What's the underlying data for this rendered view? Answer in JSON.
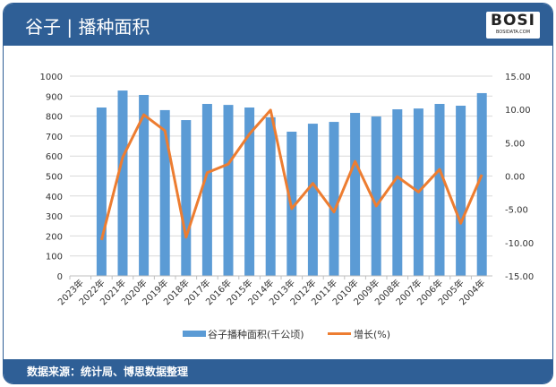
{
  "header": {
    "title": "谷子 | 播种面积",
    "logo_text": "BOSI",
    "logo_sub": "BOSIDATA.COM"
  },
  "footer": {
    "source": "数据来源：统计局、博思数据整理"
  },
  "colors": {
    "header": "#2f5f96",
    "bar": "#5b9bd5",
    "line": "#ed7d31"
  },
  "chart_data": {
    "type": "bar",
    "categories": [
      "2023年",
      "2022年",
      "2021年",
      "2020年",
      "2019年",
      "2018年",
      "2017年",
      "2016年",
      "2015年",
      "2014年",
      "2013年",
      "2012年",
      "2011年",
      "2010年",
      "2009年",
      "2008年",
      "2007年",
      "2006年",
      "2005年",
      "2004年"
    ],
    "series": [
      {
        "name": "谷子播种面积(千公顷)",
        "type": "bar",
        "axis": "left",
        "values": [
          null,
          843,
          928,
          906,
          830,
          780,
          861,
          856,
          843,
          794,
          722,
          762,
          771,
          816,
          798,
          834,
          838,
          861,
          852,
          915
        ]
      },
      {
        "name": "增长(%)",
        "type": "line",
        "axis": "right",
        "values": [
          null,
          -9.6,
          2.8,
          9.2,
          6.8,
          -9.2,
          0.5,
          1.8,
          6.3,
          9.9,
          -4.9,
          -1.1,
          -5.4,
          2.2,
          -4.5,
          -0.1,
          -2.4,
          1.0,
          -7.1,
          0.2
        ]
      }
    ],
    "y_left": {
      "range": [
        0,
        1000
      ],
      "ticks": [
        "0",
        "100",
        "200",
        "300",
        "400",
        "500",
        "600",
        "700",
        "800",
        "900",
        "1000"
      ]
    },
    "y_right": {
      "range": [
        -15,
        15
      ],
      "ticks": [
        "-15.00",
        "-10.00",
        "-5.00",
        "0.00",
        "5.00",
        "10.00",
        "15.00"
      ]
    },
    "grid": true,
    "legend": "bottom"
  }
}
